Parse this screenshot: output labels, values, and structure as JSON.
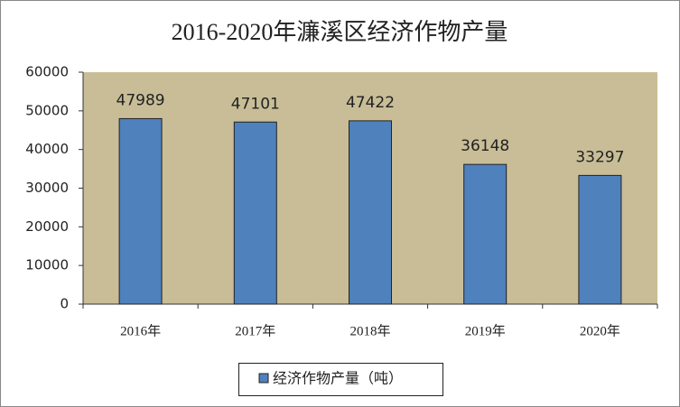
{
  "chart_data": {
    "type": "bar",
    "title": "2016-2020年濂溪区经济作物产量",
    "categories": [
      "2016年",
      "2017年",
      "2018年",
      "2019年",
      "2020年"
    ],
    "series": [
      {
        "name": "经济作物产量（吨）",
        "color": "#4f81bd",
        "values": [
          47989,
          47101,
          47422,
          36148,
          33297
        ]
      }
    ],
    "ylim": [
      0,
      60000
    ],
    "yticks": [
      0,
      10000,
      20000,
      30000,
      40000,
      50000,
      60000
    ],
    "grid": false,
    "legend": "bottom",
    "plot_background": "#c8bd97"
  }
}
